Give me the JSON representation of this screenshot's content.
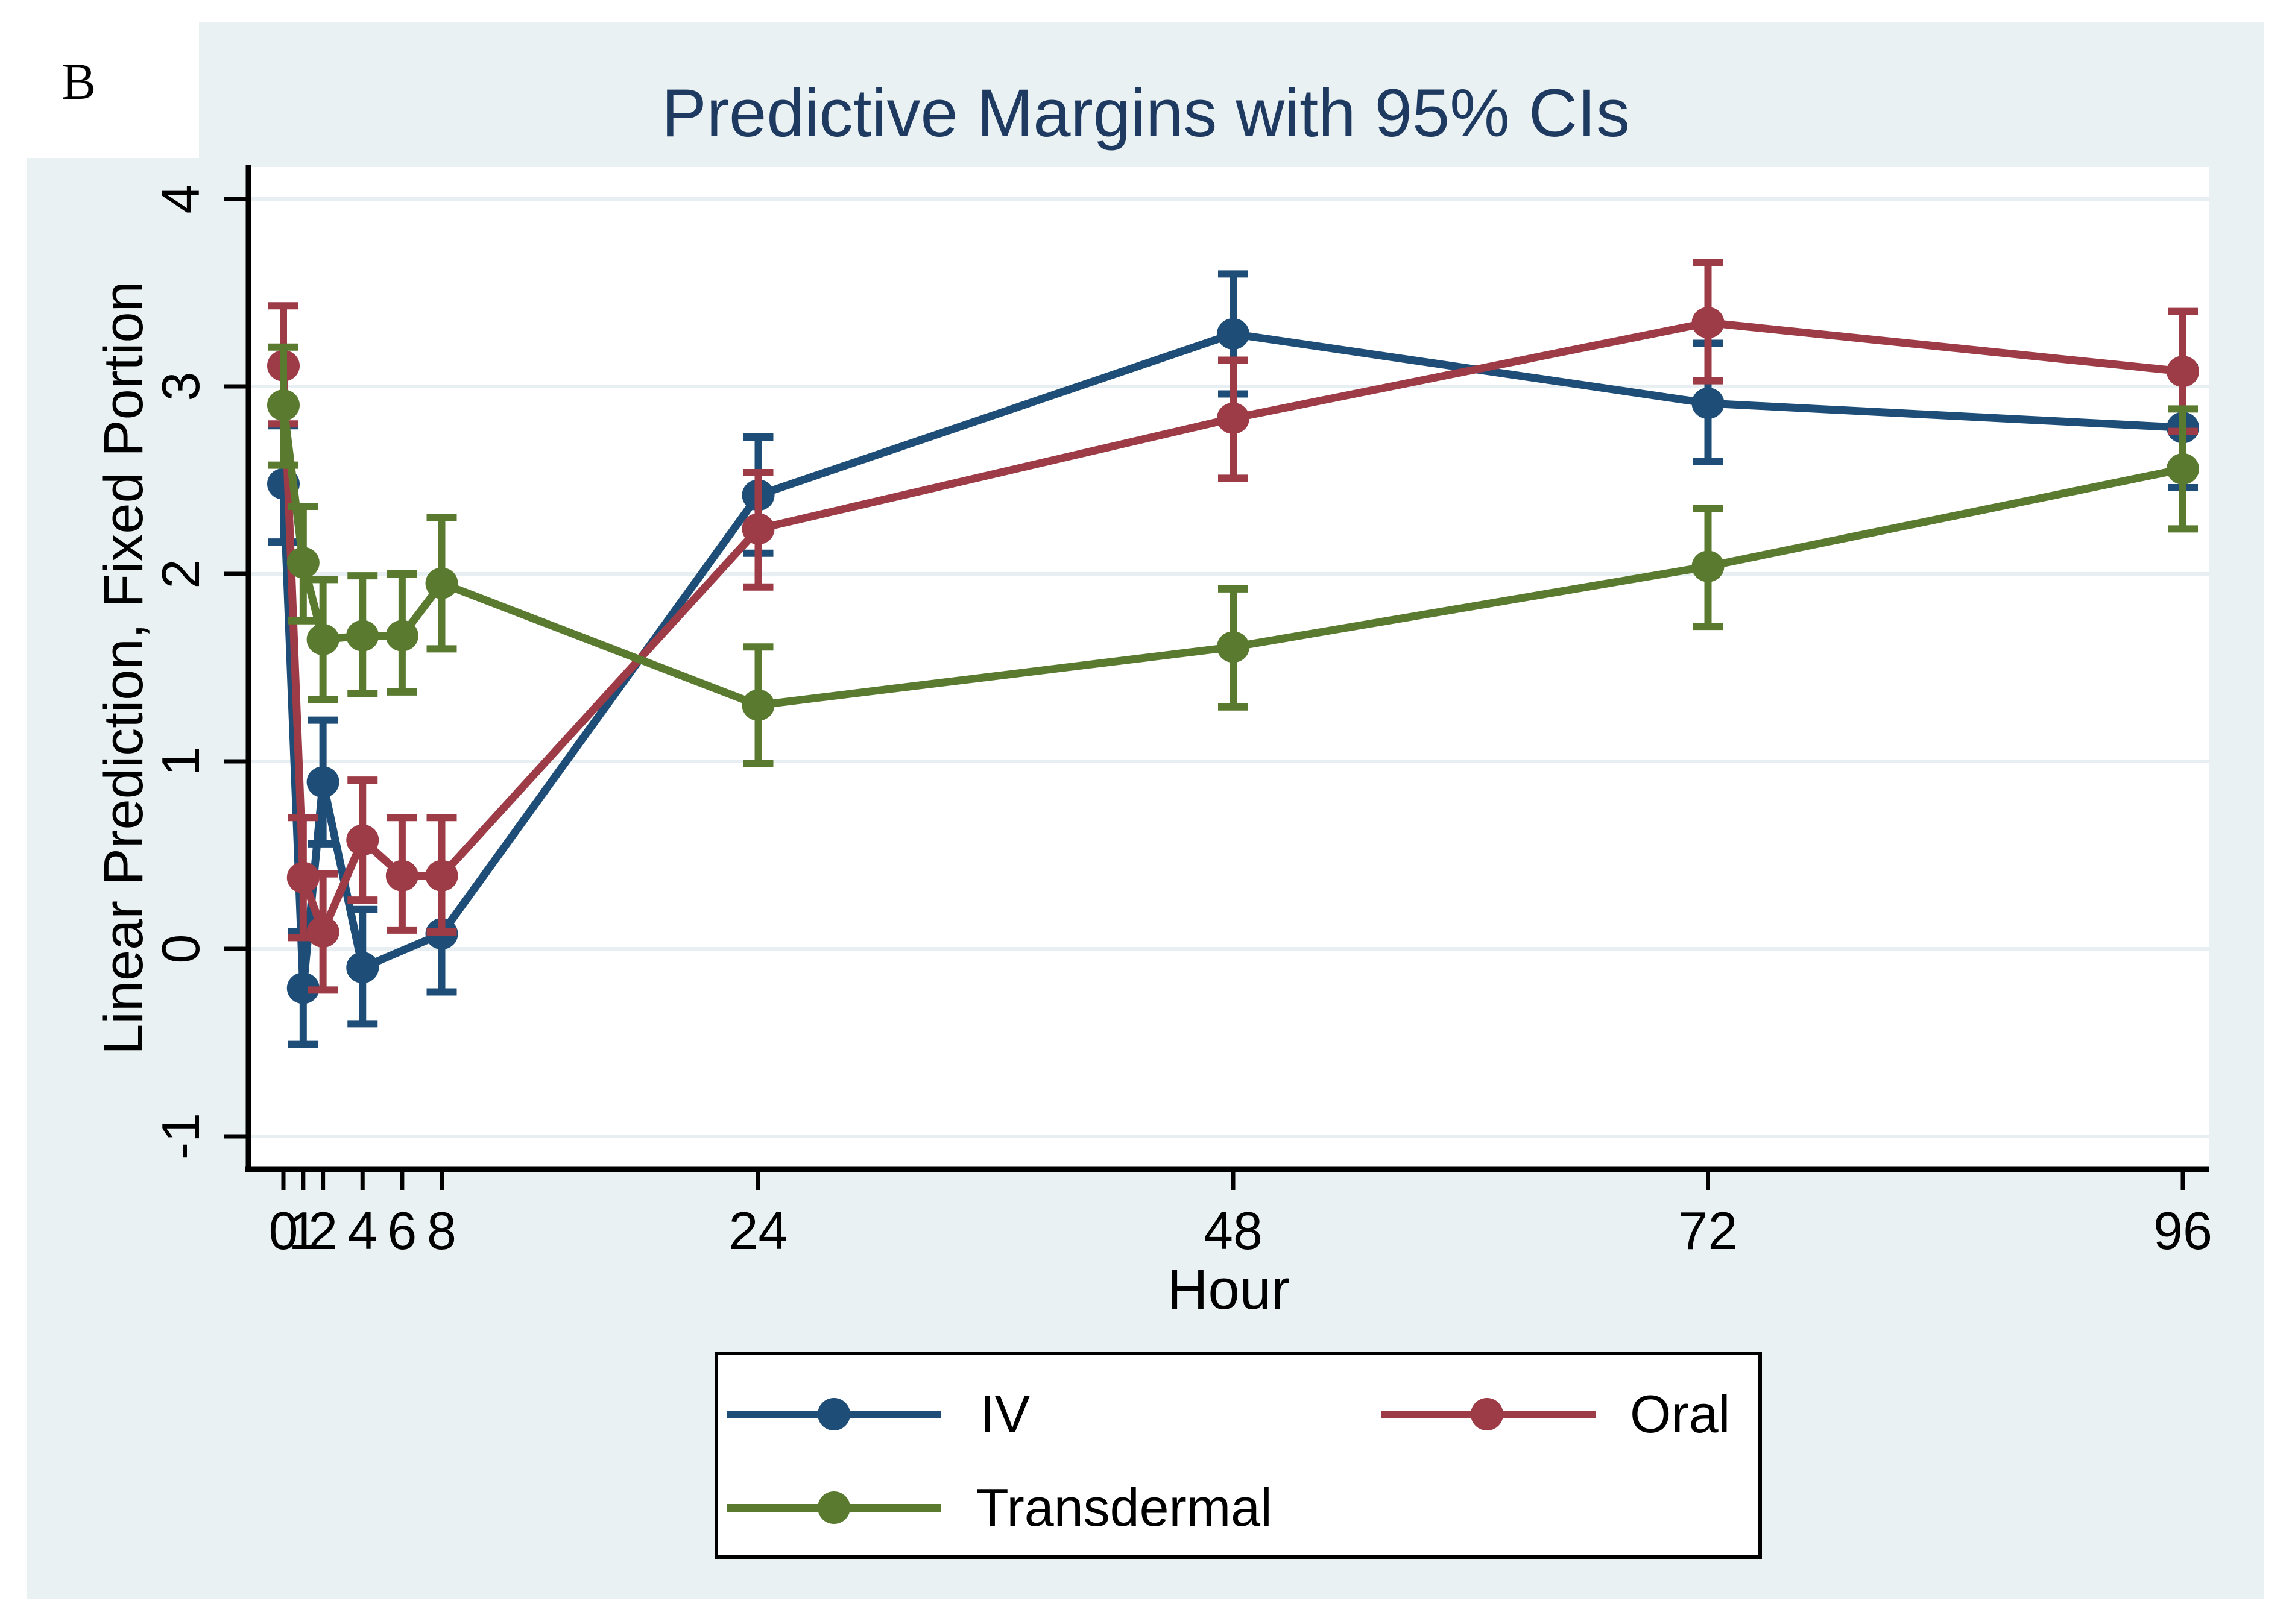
{
  "panel_label": "B",
  "colors": {
    "title_text": "#1f3a60",
    "figure_background": "#e9f1f3",
    "plot_background": "#ffffff",
    "gridline": "#e7eff2",
    "axis": "#000000",
    "iv": "#1e4d78",
    "oral": "#9d3b46",
    "transdermal": "#5a7b2f"
  },
  "chart_data": {
    "type": "line",
    "title": "Predictive Margins with 95% CIs",
    "xlabel": "Hour",
    "ylabel": "Linear Prediction, Fixed Portion",
    "x_ticks": [
      0,
      1,
      2,
      4,
      6,
      8,
      24,
      48,
      72,
      96
    ],
    "y_ticks": [
      -1,
      0,
      1,
      2,
      3,
      4
    ],
    "xlim": [
      -1.8,
      97.3
    ],
    "ylim": [
      -1.18,
      4.17
    ],
    "grid": "horizontal-only",
    "error_bars": "95% CI with caps",
    "legend_position": "bottom-box",
    "series": [
      {
        "name": "IV",
        "color": "#1e4d78",
        "x": [
          0,
          1,
          2,
          4,
          8,
          24,
          48,
          72,
          96
        ],
        "y": [
          2.48,
          -0.21,
          0.89,
          -0.1,
          0.08,
          2.42,
          3.28,
          2.91,
          2.78
        ],
        "ci_low": [
          2.17,
          -0.51,
          0.56,
          -0.4,
          -0.23,
          2.11,
          2.96,
          2.6,
          2.46
        ],
        "ci_high": [
          2.79,
          0.09,
          1.22,
          0.21,
          0.39,
          2.73,
          3.6,
          3.23,
          3.1
        ]
      },
      {
        "name": "Oral",
        "color": "#9d3b46",
        "x": [
          0,
          1,
          2,
          4,
          6,
          8,
          24,
          48,
          72,
          96
        ],
        "y": [
          3.11,
          0.38,
          0.09,
          0.58,
          0.39,
          0.39,
          2.24,
          2.83,
          3.34,
          3.08
        ],
        "ci_low": [
          2.8,
          0.06,
          -0.22,
          0.26,
          0.1,
          0.09,
          1.93,
          2.51,
          3.03,
          2.76
        ],
        "ci_high": [
          3.43,
          0.7,
          0.4,
          0.9,
          0.7,
          0.7,
          2.54,
          3.14,
          3.66,
          3.4
        ]
      },
      {
        "name": "Transdermal",
        "color": "#5a7b2f",
        "x": [
          0,
          1,
          2,
          4,
          6,
          8,
          24,
          48,
          72,
          96
        ],
        "y": [
          2.9,
          2.06,
          1.65,
          1.67,
          1.67,
          1.95,
          1.3,
          1.61,
          2.04,
          2.56
        ],
        "ci_low": [
          2.58,
          1.75,
          1.33,
          1.36,
          1.37,
          1.6,
          0.99,
          1.29,
          1.72,
          2.24
        ],
        "ci_high": [
          3.21,
          2.36,
          1.97,
          1.99,
          2.0,
          2.3,
          1.61,
          1.92,
          2.35,
          2.88
        ]
      }
    ]
  }
}
